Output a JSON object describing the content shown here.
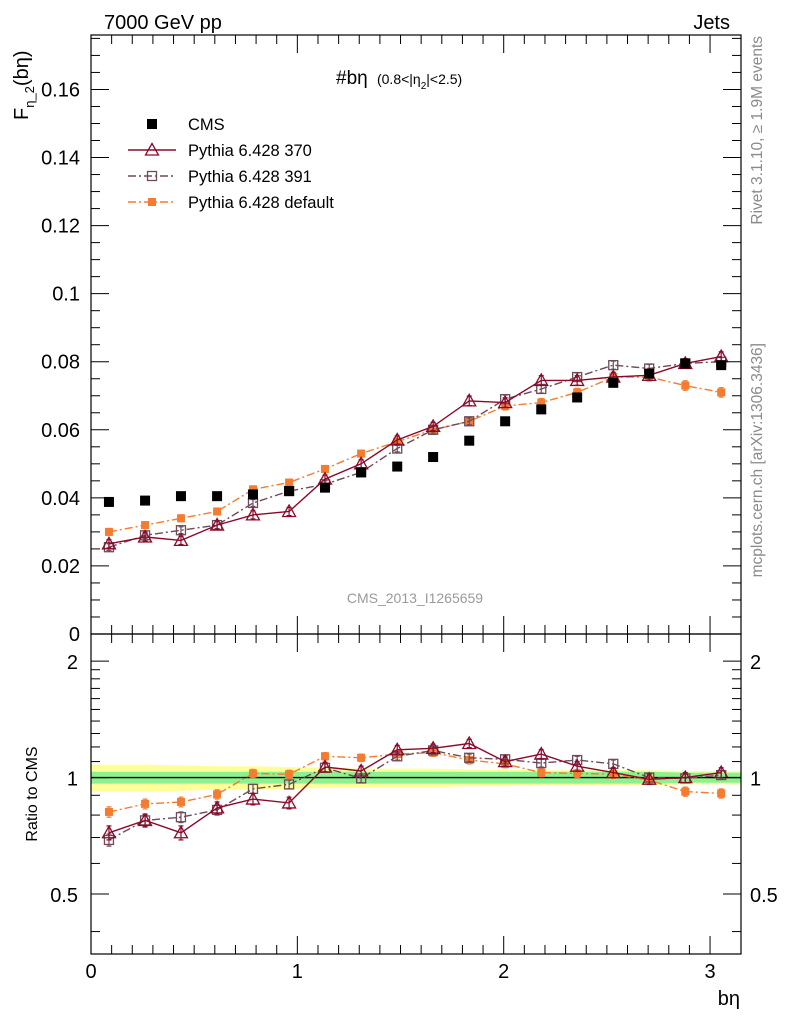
{
  "header": {
    "energy_label": "7000 GeV pp",
    "category_label": "Jets"
  },
  "side_text": {
    "rivet": "Rivet 3.1.10, ≥ 1.9M events",
    "mcplots": "mcplots.cern.ch [arXiv:1306.3436]"
  },
  "chart_data": [
    {
      "type": "scatter",
      "panel": "main",
      "title": "#bη (0.8<|η₂|<2.5)",
      "title_main": "#bη",
      "title_cut": "(0.8<|η",
      "title_sub": "2",
      "title_end": "|<2.5)",
      "ylabel": "F",
      "ylabel_sub": "η_2",
      "ylabel_arg": "(bη)",
      "watermark": "CMS_2013_I1265659",
      "xlim": [
        0,
        3.15
      ],
      "ylim": [
        0,
        0.176
      ],
      "y_ticks": [
        0,
        0.02,
        0.04,
        0.06,
        0.08,
        0.1,
        0.12,
        0.14,
        0.16
      ],
      "y_tick_labels": [
        "0",
        "0.02",
        "0.04",
        "0.06",
        "0.08",
        "0.1",
        "0.12",
        "0.14",
        "0.16"
      ],
      "x": [
        0.087,
        0.262,
        0.436,
        0.611,
        0.785,
        0.96,
        1.134,
        1.309,
        1.484,
        1.658,
        1.833,
        2.007,
        2.182,
        2.356,
        2.531,
        2.705,
        2.88,
        3.054
      ],
      "series": [
        {
          "name": "CMS",
          "color": "#000000",
          "marker": "filled-square",
          "values": [
            0.0388,
            0.0392,
            0.0405,
            0.0405,
            0.041,
            0.042,
            0.043,
            0.0475,
            0.0492,
            0.052,
            0.0568,
            0.0625,
            0.066,
            0.0695,
            0.0738,
            0.0765,
            0.0795,
            0.079
          ],
          "errors": [
            0.0005,
            0.0005,
            0.0005,
            0.0005,
            0.0005,
            0.0005,
            0.0005,
            0.0005,
            0.0005,
            0.0005,
            0.0005,
            0.0005,
            0.0005,
            0.0005,
            0.0005,
            0.0005,
            0.0005,
            0.0005
          ]
        },
        {
          "name": "Pythia 6.428 370",
          "color": "#8b0a2a",
          "marker": "open-triangle",
          "line": "solid",
          "values": [
            0.0265,
            0.0285,
            0.0275,
            0.032,
            0.035,
            0.036,
            0.0455,
            0.05,
            0.057,
            0.061,
            0.0685,
            0.068,
            0.0745,
            0.0745,
            0.0755,
            0.076,
            0.0795,
            0.0815
          ],
          "errors": [
            0.0012,
            0.0012,
            0.0012,
            0.0012,
            0.0012,
            0.0012,
            0.0012,
            0.0012,
            0.0012,
            0.0012,
            0.0014,
            0.0014,
            0.0014,
            0.0014,
            0.0014,
            0.0014,
            0.0014,
            0.0014
          ]
        },
        {
          "name": "Pythia 6.428 391",
          "color": "#6e4a5a",
          "marker": "open-square",
          "line": "dashdot",
          "values": [
            0.0255,
            0.029,
            0.0305,
            0.032,
            0.0385,
            0.042,
            0.044,
            0.0475,
            0.0545,
            0.06,
            0.0625,
            0.069,
            0.072,
            0.0755,
            0.079,
            0.078,
            0.0795,
            0.08
          ],
          "errors": [
            0.001,
            0.001,
            0.001,
            0.001,
            0.001,
            0.001,
            0.001,
            0.001,
            0.001,
            0.001,
            0.001,
            0.0012,
            0.0012,
            0.0012,
            0.0012,
            0.0012,
            0.0012,
            0.0012
          ]
        },
        {
          "name": "Pythia 6.428 default",
          "color": "#f47c30",
          "marker": "filled-square-small",
          "line": "dashdot",
          "values": [
            0.03,
            0.032,
            0.034,
            0.036,
            0.0425,
            0.0445,
            0.0485,
            0.053,
            0.0565,
            0.06,
            0.0625,
            0.067,
            0.068,
            0.071,
            0.0755,
            0.0755,
            0.073,
            0.071
          ],
          "errors": [
            0.001,
            0.001,
            0.001,
            0.001,
            0.001,
            0.001,
            0.001,
            0.001,
            0.001,
            0.001,
            0.001,
            0.0012,
            0.0012,
            0.0012,
            0.0012,
            0.0012,
            0.0014,
            0.0014
          ]
        }
      ],
      "legend_position": "top-left"
    },
    {
      "type": "line",
      "panel": "ratio",
      "ylabel": "Ratio to CMS",
      "xlabel": "bη",
      "xlim": [
        0,
        3.15
      ],
      "ylim": [
        0.35,
        2.35
      ],
      "y_ticks": [
        0.5,
        1,
        2
      ],
      "y_tick_labels": [
        "0.5",
        "1",
        "2"
      ],
      "x_ticks": [
        0,
        1,
        2,
        3
      ],
      "x_tick_labels": [
        "0",
        "1",
        "2",
        "3"
      ],
      "band_inner": {
        "color": "#8ff08f",
        "low": [
          0.965,
          0.965,
          0.965,
          0.965,
          0.965,
          0.965,
          0.965,
          0.965,
          0.965,
          0.965,
          0.965,
          0.965,
          0.965,
          0.965,
          0.965,
          0.965,
          0.97,
          0.97
        ],
        "high": [
          1.035,
          1.035,
          1.035,
          1.035,
          1.035,
          1.035,
          1.035,
          1.035,
          1.035,
          1.035,
          1.035,
          1.035,
          1.035,
          1.035,
          1.035,
          1.035,
          1.03,
          1.03
        ]
      },
      "band_outer": {
        "color": "#ffff99",
        "low": [
          0.92,
          0.92,
          0.925,
          0.93,
          0.93,
          0.935,
          0.94,
          0.945,
          0.945,
          0.945,
          0.95,
          0.95,
          0.955,
          0.955,
          0.955,
          0.955,
          0.96,
          0.96
        ],
        "high": [
          1.08,
          1.08,
          1.075,
          1.07,
          1.07,
          1.065,
          1.06,
          1.055,
          1.055,
          1.055,
          1.05,
          1.05,
          1.045,
          1.045,
          1.045,
          1.045,
          1.04,
          1.04
        ]
      },
      "series": [
        {
          "name": "Pythia 6.428 370",
          "color": "#8b0a2a",
          "marker": "open-triangle",
          "line": "solid",
          "values": [
            0.72,
            0.775,
            0.72,
            0.835,
            0.88,
            0.86,
            1.065,
            1.04,
            1.18,
            1.19,
            1.225,
            1.1,
            1.15,
            1.07,
            1.03,
            0.99,
            1.0,
            1.03
          ],
          "errors": [
            0.03,
            0.03,
            0.03,
            0.03,
            0.03,
            0.03,
            0.03,
            0.03,
            0.03,
            0.03,
            0.03,
            0.03,
            0.03,
            0.03,
            0.03,
            0.03,
            0.03,
            0.03
          ]
        },
        {
          "name": "Pythia 6.428 391",
          "color": "#6e4a5a",
          "marker": "open-square",
          "line": "dashdot",
          "values": [
            0.69,
            0.775,
            0.79,
            0.825,
            0.935,
            0.96,
            1.06,
            0.995,
            1.135,
            1.175,
            1.125,
            1.115,
            1.09,
            1.11,
            1.085,
            1.0,
            0.995,
            1.015
          ],
          "errors": [
            0.025,
            0.025,
            0.025,
            0.025,
            0.025,
            0.025,
            0.025,
            0.025,
            0.025,
            0.025,
            0.025,
            0.025,
            0.025,
            0.025,
            0.025,
            0.025,
            0.025,
            0.025
          ]
        },
        {
          "name": "Pythia 6.428 default",
          "color": "#f47c30",
          "marker": "filled-square-small",
          "line": "dashdot",
          "values": [
            0.815,
            0.855,
            0.865,
            0.905,
            1.025,
            1.02,
            1.135,
            1.125,
            1.15,
            1.16,
            1.11,
            1.085,
            1.03,
            1.025,
            1.02,
            0.985,
            0.92,
            0.91
          ],
          "errors": [
            0.025,
            0.025,
            0.025,
            0.025,
            0.025,
            0.025,
            0.025,
            0.025,
            0.025,
            0.025,
            0.025,
            0.025,
            0.025,
            0.025,
            0.025,
            0.025,
            0.025,
            0.025
          ]
        }
      ]
    }
  ]
}
